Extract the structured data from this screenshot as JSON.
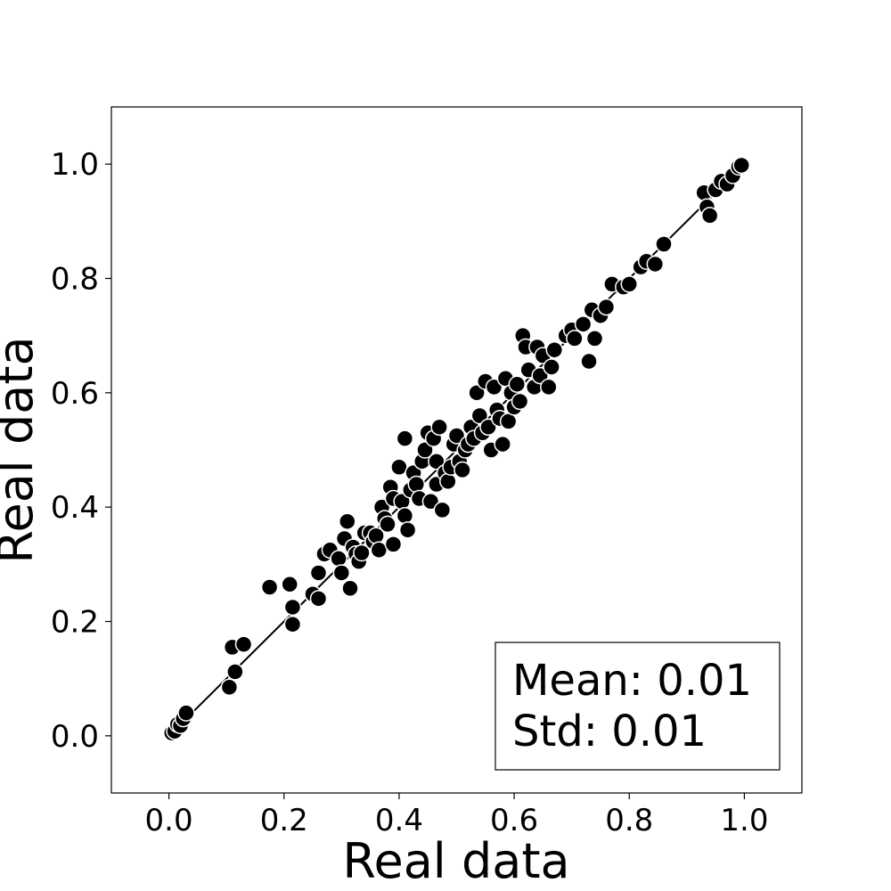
{
  "chart_data": {
    "type": "scatter",
    "xlabel": "Real data",
    "ylabel": "Real data",
    "xlim": [
      -0.1,
      1.1
    ],
    "ylim": [
      -0.1,
      1.1
    ],
    "xticks": [
      "0.0",
      "0.2",
      "0.4",
      "0.6",
      "0.8",
      "1.0"
    ],
    "yticks": [
      "0.0",
      "0.2",
      "0.4",
      "0.6",
      "0.8",
      "1.0"
    ],
    "tick_values": [
      0.0,
      0.2,
      0.4,
      0.6,
      0.8,
      1.0
    ],
    "reference_line": {
      "x": [
        0.0,
        1.0
      ],
      "y": [
        0.0,
        1.0
      ]
    },
    "stats_box": {
      "mean_text": "Mean: 0.01",
      "std_text": "Std: 0.01",
      "placement": "bottom-right"
    },
    "marker_color": "#000000",
    "marker_edge": "#ffffff",
    "grid": false,
    "points": [
      [
        0.005,
        0.005
      ],
      [
        0.01,
        0.008
      ],
      [
        0.015,
        0.02
      ],
      [
        0.02,
        0.018
      ],
      [
        0.025,
        0.03
      ],
      [
        0.03,
        0.04
      ],
      [
        0.105,
        0.085
      ],
      [
        0.11,
        0.155
      ],
      [
        0.115,
        0.112
      ],
      [
        0.13,
        0.16
      ],
      [
        0.175,
        0.26
      ],
      [
        0.21,
        0.265
      ],
      [
        0.215,
        0.225
      ],
      [
        0.215,
        0.195
      ],
      [
        0.25,
        0.248
      ],
      [
        0.26,
        0.285
      ],
      [
        0.26,
        0.24
      ],
      [
        0.27,
        0.318
      ],
      [
        0.28,
        0.325
      ],
      [
        0.295,
        0.31
      ],
      [
        0.3,
        0.285
      ],
      [
        0.305,
        0.345
      ],
      [
        0.31,
        0.375
      ],
      [
        0.315,
        0.258
      ],
      [
        0.32,
        0.33
      ],
      [
        0.325,
        0.318
      ],
      [
        0.33,
        0.305
      ],
      [
        0.335,
        0.32
      ],
      [
        0.34,
        0.355
      ],
      [
        0.35,
        0.355
      ],
      [
        0.355,
        0.34
      ],
      [
        0.36,
        0.35
      ],
      [
        0.365,
        0.325
      ],
      [
        0.37,
        0.4
      ],
      [
        0.375,
        0.38
      ],
      [
        0.38,
        0.37
      ],
      [
        0.385,
        0.435
      ],
      [
        0.39,
        0.415
      ],
      [
        0.39,
        0.335
      ],
      [
        0.4,
        0.47
      ],
      [
        0.405,
        0.41
      ],
      [
        0.41,
        0.52
      ],
      [
        0.41,
        0.385
      ],
      [
        0.415,
        0.36
      ],
      [
        0.42,
        0.43
      ],
      [
        0.425,
        0.46
      ],
      [
        0.43,
        0.44
      ],
      [
        0.435,
        0.415
      ],
      [
        0.44,
        0.48
      ],
      [
        0.445,
        0.5
      ],
      [
        0.45,
        0.53
      ],
      [
        0.455,
        0.41
      ],
      [
        0.46,
        0.52
      ],
      [
        0.465,
        0.48
      ],
      [
        0.465,
        0.44
      ],
      [
        0.47,
        0.54
      ],
      [
        0.475,
        0.395
      ],
      [
        0.48,
        0.46
      ],
      [
        0.485,
        0.445
      ],
      [
        0.49,
        0.47
      ],
      [
        0.495,
        0.51
      ],
      [
        0.5,
        0.525
      ],
      [
        0.505,
        0.48
      ],
      [
        0.51,
        0.465
      ],
      [
        0.515,
        0.5
      ],
      [
        0.52,
        0.51
      ],
      [
        0.525,
        0.54
      ],
      [
        0.53,
        0.52
      ],
      [
        0.535,
        0.6
      ],
      [
        0.54,
        0.56
      ],
      [
        0.545,
        0.53
      ],
      [
        0.55,
        0.62
      ],
      [
        0.555,
        0.54
      ],
      [
        0.56,
        0.5
      ],
      [
        0.565,
        0.61
      ],
      [
        0.57,
        0.57
      ],
      [
        0.575,
        0.555
      ],
      [
        0.58,
        0.51
      ],
      [
        0.585,
        0.625
      ],
      [
        0.59,
        0.55
      ],
      [
        0.595,
        0.6
      ],
      [
        0.6,
        0.575
      ],
      [
        0.605,
        0.615
      ],
      [
        0.61,
        0.585
      ],
      [
        0.615,
        0.7
      ],
      [
        0.62,
        0.68
      ],
      [
        0.625,
        0.64
      ],
      [
        0.635,
        0.61
      ],
      [
        0.64,
        0.68
      ],
      [
        0.645,
        0.63
      ],
      [
        0.65,
        0.665
      ],
      [
        0.66,
        0.61
      ],
      [
        0.665,
        0.645
      ],
      [
        0.67,
        0.675
      ],
      [
        0.69,
        0.7
      ],
      [
        0.7,
        0.71
      ],
      [
        0.705,
        0.695
      ],
      [
        0.72,
        0.72
      ],
      [
        0.73,
        0.655
      ],
      [
        0.735,
        0.745
      ],
      [
        0.74,
        0.695
      ],
      [
        0.75,
        0.735
      ],
      [
        0.76,
        0.75
      ],
      [
        0.77,
        0.79
      ],
      [
        0.79,
        0.785
      ],
      [
        0.8,
        0.79
      ],
      [
        0.82,
        0.82
      ],
      [
        0.83,
        0.83
      ],
      [
        0.845,
        0.825
      ],
      [
        0.86,
        0.86
      ],
      [
        0.93,
        0.95
      ],
      [
        0.935,
        0.925
      ],
      [
        0.94,
        0.91
      ],
      [
        0.95,
        0.955
      ],
      [
        0.96,
        0.97
      ],
      [
        0.97,
        0.965
      ],
      [
        0.98,
        0.98
      ],
      [
        0.99,
        0.995
      ],
      [
        0.995,
        0.998
      ]
    ]
  }
}
